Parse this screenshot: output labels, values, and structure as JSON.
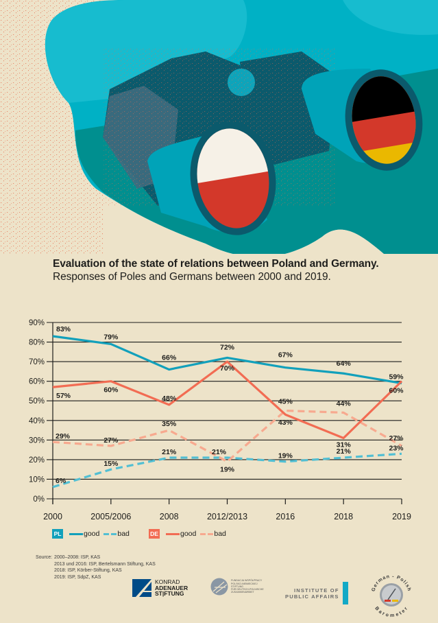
{
  "header": {
    "title": "Evaluation of the state of relations between Poland and Germany.",
    "subtitle": "Responses of Poles and Germans between 2000 and 2019."
  },
  "illustration": {
    "subject": "binoculars-with-flags",
    "left_lens_flag": "Poland",
    "right_lens_flag": "Germany",
    "colors": {
      "background": "#ede3c9",
      "sky_light": "#17bccf",
      "sky_mid": "#00b1c5",
      "teal_ground": "#008f8f",
      "binocular_dark": "#0b5a6c",
      "binocular_body": "#00a3b8",
      "speckle": "#e86a4a",
      "flag_white": "#f6f1e7",
      "flag_red": "#d3382a",
      "flag_black": "#000000",
      "flag_gold": "#eab800"
    }
  },
  "chart_data": {
    "type": "line",
    "title": "Evaluation of the state of relations between Poland and Germany.",
    "subtitle": "Responses of Poles and Germans between 2000 and 2019.",
    "xlabel": "",
    "ylabel": "",
    "categories": [
      "2000",
      "2005/2006",
      "2008",
      "2012/2013",
      "2016",
      "2018",
      "2019"
    ],
    "yticks": [
      "0%",
      "10%",
      "20%",
      "30%",
      "40%",
      "50%",
      "60%",
      "70%",
      "80%",
      "90%"
    ],
    "ylim": [
      0,
      90
    ],
    "grid": true,
    "series": [
      {
        "name": "PL good",
        "country": "PL",
        "kind": "good",
        "style": "solid",
        "color": "#12a0bb",
        "values": [
          83,
          79,
          66,
          72,
          67,
          64,
          59
        ],
        "labels": [
          "83%",
          "79%",
          "66%",
          "72%",
          "67%",
          "64%",
          "59%"
        ]
      },
      {
        "name": "DE good",
        "country": "DE",
        "kind": "good",
        "style": "solid",
        "color": "#f26c53",
        "values": [
          57,
          60,
          48,
          70,
          43,
          31,
          60
        ],
        "labels": [
          "57%",
          "60%",
          "48%",
          "70%",
          "43%",
          "31%",
          "60%"
        ]
      },
      {
        "name": "DE bad",
        "country": "DE",
        "kind": "bad",
        "style": "dashed",
        "color": "#f7a98f",
        "values": [
          29,
          27,
          35,
          19,
          45,
          44,
          27
        ],
        "labels": [
          "29%",
          "27%",
          "35%",
          "19%",
          "45%",
          "44%",
          "27%"
        ]
      },
      {
        "name": "PL bad",
        "country": "PL",
        "kind": "bad",
        "style": "dashed",
        "color": "#52bfd3",
        "values": [
          6,
          15,
          21,
          21,
          19,
          21,
          23
        ],
        "labels": [
          "6%",
          "15%",
          "21%",
          "21%",
          "19%",
          "21%",
          "23%"
        ]
      }
    ],
    "legend": {
      "placement": "bottom-left",
      "groups": [
        {
          "badge": "PL",
          "badge_color": "#12a0bb",
          "items": [
            {
              "label": "good",
              "color": "#12a0bb",
              "style": "solid"
            },
            {
              "label": "bad",
              "color": "#52bfd3",
              "style": "dashed"
            }
          ]
        },
        {
          "badge": "DE",
          "badge_color": "#f26c53",
          "items": [
            {
              "label": "good",
              "color": "#f26c53",
              "style": "solid"
            },
            {
              "label": "bad",
              "color": "#f7a98f",
              "style": "dashed"
            }
          ]
        }
      ]
    }
  },
  "source": {
    "label": "Source:",
    "lines": [
      "2000–2008: ISP, KAS",
      "2013 und 2016: ISP, Bertelsmann Stiftung, KAS",
      "2018: ISP, Körber-Stiftung, KAS",
      "2019: ISP, SdpZ, KAS"
    ]
  },
  "logos": {
    "kas": {
      "line1": "KONRAD",
      "line2": "ADENAUER",
      "line3": "ST|FTUNG",
      "color": "#004b87"
    },
    "fwpn": {
      "line1": "FUNDACJA WSPÓŁPRACY",
      "line2": "POLSKO-NIEMIECKIEJ",
      "line3": "STIFTUNG",
      "line4": "FÜR DEUTSCH-POLNISCHE",
      "line5": "ZUSAMMENARBEIT"
    },
    "isp": {
      "line1": "INSTITUTE OF",
      "line2": "PUBLIC AFFAIRS",
      "bar_color": "#13a9c6"
    },
    "barometer": {
      "top_text": "German - Polish",
      "bottom_text": "Barometer"
    }
  }
}
